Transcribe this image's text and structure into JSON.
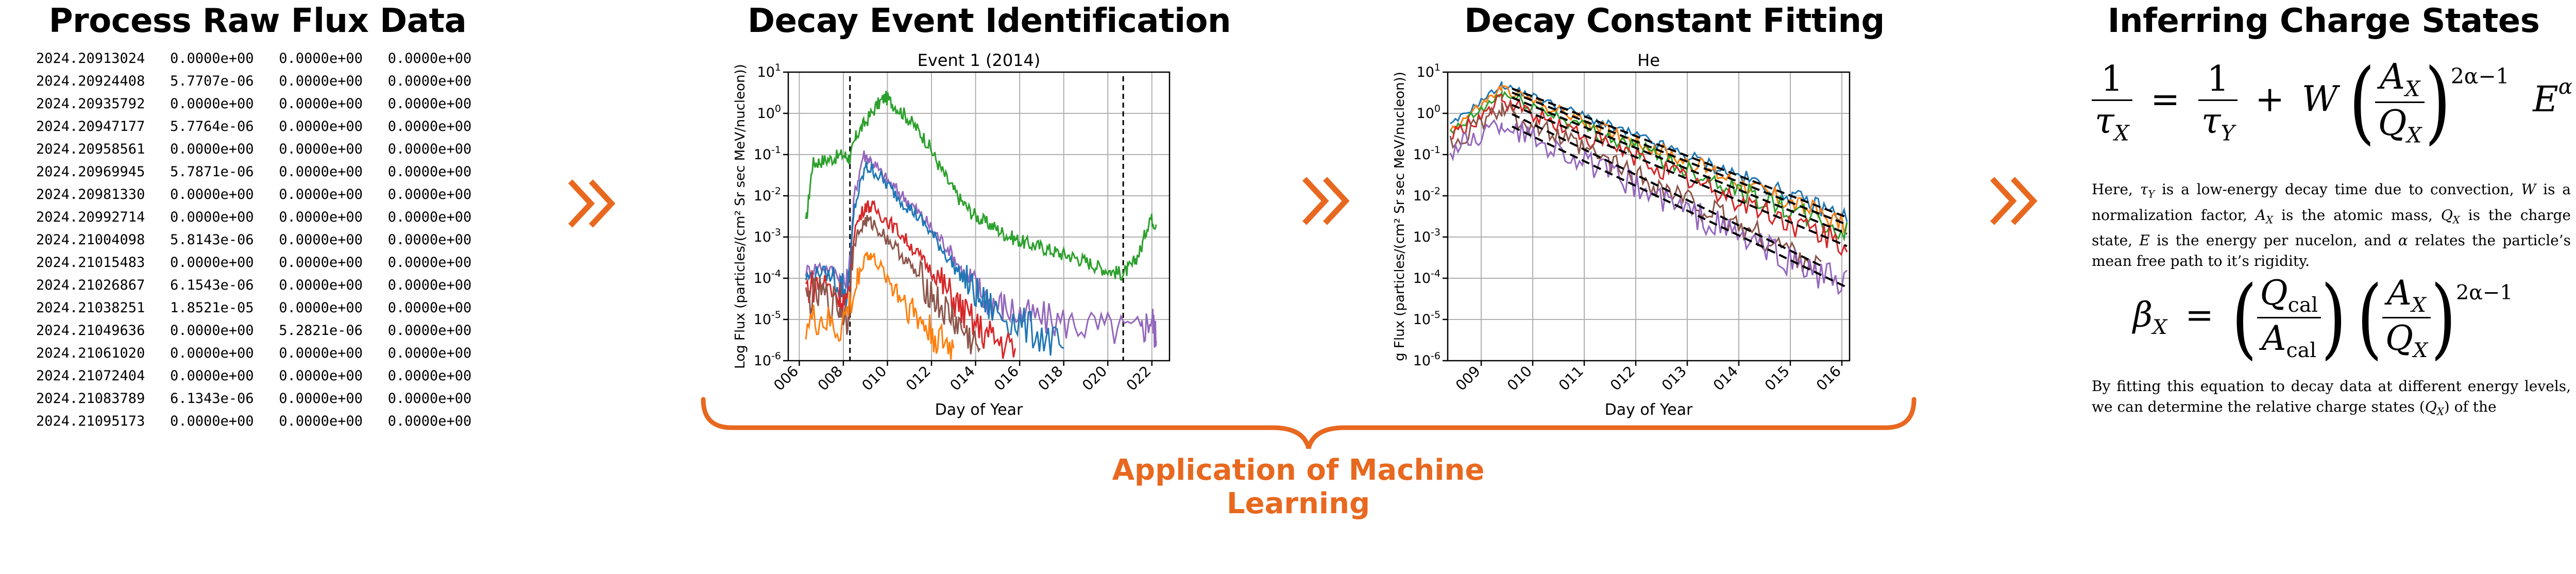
{
  "stages": [
    {
      "title": "Process Raw Flux Data"
    },
    {
      "title": "Decay Event Identification"
    },
    {
      "title": "Decay Constant Fitting"
    },
    {
      "title": "Inferring Charge States"
    }
  ],
  "raw_table": {
    "rows": [
      [
        "2024.20913024",
        "0.0000e+00",
        "0.0000e+00",
        "0.0000e+00"
      ],
      [
        "2024.20924408",
        "5.7707e-06",
        "0.0000e+00",
        "0.0000e+00"
      ],
      [
        "2024.20935792",
        "0.0000e+00",
        "0.0000e+00",
        "0.0000e+00"
      ],
      [
        "2024.20947177",
        "5.7764e-06",
        "0.0000e+00",
        "0.0000e+00"
      ],
      [
        "2024.20958561",
        "0.0000e+00",
        "0.0000e+00",
        "0.0000e+00"
      ],
      [
        "2024.20969945",
        "5.7871e-06",
        "0.0000e+00",
        "0.0000e+00"
      ],
      [
        "2024.20981330",
        "0.0000e+00",
        "0.0000e+00",
        "0.0000e+00"
      ],
      [
        "2024.20992714",
        "0.0000e+00",
        "0.0000e+00",
        "0.0000e+00"
      ],
      [
        "2024.21004098",
        "5.8143e-06",
        "0.0000e+00",
        "0.0000e+00"
      ],
      [
        "2024.21015483",
        "0.0000e+00",
        "0.0000e+00",
        "0.0000e+00"
      ],
      [
        "2024.21026867",
        "6.1543e-06",
        "0.0000e+00",
        "0.0000e+00"
      ],
      [
        "2024.21038251",
        "1.8521e-05",
        "0.0000e+00",
        "0.0000e+00"
      ],
      [
        "2024.21049636",
        "0.0000e+00",
        "5.2821e-06",
        "0.0000e+00"
      ],
      [
        "2024.21061020",
        "0.0000e+00",
        "0.0000e+00",
        "0.0000e+00"
      ],
      [
        "2024.21072404",
        "0.0000e+00",
        "0.0000e+00",
        "0.0000e+00"
      ],
      [
        "2024.21083789",
        "6.1343e-06",
        "0.0000e+00",
        "0.0000e+00"
      ],
      [
        "2024.21095173",
        "0.0000e+00",
        "0.0000e+00",
        "0.0000e+00"
      ]
    ]
  },
  "chart_data": [
    {
      "type": "line",
      "title": "Event 1 (2014)",
      "xlabel": "Day of Year",
      "ylabel": "Log Flux (particles/(cm² Sr sec MeV/nucleon))",
      "y_scale": "log",
      "xlim": [
        5.5,
        22.8
      ],
      "ylim": [
        1e-06,
        10
      ],
      "x_ticks": [
        "006",
        "008",
        "010",
        "012",
        "014",
        "016",
        "018",
        "020",
        "022"
      ],
      "x_tick_values": [
        6,
        8,
        10,
        12,
        14,
        16,
        18,
        20,
        22
      ],
      "y_tick_exponents": [
        -6,
        -5,
        -4,
        -3,
        -2,
        -1,
        0,
        1
      ],
      "grid": true,
      "vlines": [
        8.3,
        20.7
      ],
      "series": [
        {
          "color": "#2ca02c",
          "points": [
            [
              6.3,
              0.002
            ],
            [
              6.6,
              0.06
            ],
            [
              7.0,
              0.07
            ],
            [
              7.5,
              0.08
            ],
            [
              8.0,
              0.1
            ],
            [
              8.3,
              0.08
            ],
            [
              8.6,
              0.3
            ],
            [
              9.0,
              0.6
            ],
            [
              9.5,
              1.5
            ],
            [
              9.9,
              2.5
            ],
            [
              10.3,
              1.6
            ],
            [
              10.8,
              0.9
            ],
            [
              11.3,
              0.45
            ],
            [
              11.8,
              0.2
            ],
            [
              12.3,
              0.06
            ],
            [
              12.8,
              0.02
            ],
            [
              13.3,
              0.008
            ],
            [
              13.8,
              0.004
            ],
            [
              14.3,
              0.0025
            ],
            [
              14.8,
              0.0018
            ],
            [
              15.3,
              0.0012
            ],
            [
              15.8,
              0.0009
            ],
            [
              16.3,
              0.0007
            ],
            [
              16.8,
              0.0006
            ],
            [
              17.3,
              0.0005
            ],
            [
              17.8,
              0.0004
            ],
            [
              18.3,
              0.00035
            ],
            [
              18.8,
              0.00028
            ],
            [
              19.3,
              0.00022
            ],
            [
              19.8,
              0.00017
            ],
            [
              20.3,
              0.00014
            ],
            [
              20.7,
              0.00013
            ],
            [
              21.1,
              0.0002
            ],
            [
              21.5,
              0.0005
            ],
            [
              21.9,
              0.003
            ],
            [
              22.2,
              0.002
            ]
          ]
        },
        {
          "color": "#9467bd",
          "points": [
            [
              6.3,
              0.00015
            ],
            [
              7.0,
              0.0002
            ],
            [
              7.8,
              0.00012
            ],
            [
              8.2,
              6e-05
            ],
            [
              8.5,
              0.01
            ],
            [
              8.9,
              0.1
            ],
            [
              9.3,
              0.07
            ],
            [
              9.8,
              0.03
            ],
            [
              10.4,
              0.014
            ],
            [
              11.0,
              0.007
            ],
            [
              11.6,
              0.003
            ],
            [
              12.2,
              0.0012
            ],
            [
              12.8,
              0.0005
            ],
            [
              13.4,
              0.00015
            ],
            [
              14.0,
              6e-05
            ],
            [
              14.6,
              3e-05
            ],
            [
              15.3,
              2e-05
            ],
            [
              16.2,
              1.2e-05
            ],
            [
              17.2,
              1e-05
            ],
            [
              18.5,
              8e-06
            ],
            [
              20.0,
              6e-06
            ],
            [
              21.5,
              5e-06
            ],
            [
              22.0,
              1.2e-05
            ],
            [
              22.2,
              3e-06
            ]
          ]
        },
        {
          "color": "#1f77b4",
          "points": [
            [
              6.3,
              0.0001
            ],
            [
              7.0,
              0.00015
            ],
            [
              7.8,
              8e-05
            ],
            [
              8.2,
              4e-05
            ],
            [
              8.5,
              0.005
            ],
            [
              9.0,
              0.05
            ],
            [
              9.4,
              0.04
            ],
            [
              10.0,
              0.018
            ],
            [
              10.6,
              0.008
            ],
            [
              11.2,
              0.004
            ],
            [
              11.8,
              0.0017
            ],
            [
              12.4,
              0.0006
            ],
            [
              13.0,
              0.0002
            ],
            [
              13.6,
              8e-05
            ],
            [
              14.2,
              3e-05
            ],
            [
              15.0,
              1.5e-05
            ],
            [
              16.0,
              8e-06
            ],
            [
              17.0,
              4e-06
            ],
            [
              18.0,
              2e-06
            ]
          ]
        },
        {
          "color": "#d62728",
          "points": [
            [
              6.3,
              6e-05
            ],
            [
              7.0,
              8e-05
            ],
            [
              7.8,
              4e-05
            ],
            [
              8.2,
              2e-05
            ],
            [
              8.5,
              0.0015
            ],
            [
              9.0,
              0.006
            ],
            [
              9.4,
              0.005
            ],
            [
              10.0,
              0.0025
            ],
            [
              10.6,
              0.0012
            ],
            [
              11.2,
              0.0005
            ],
            [
              11.8,
              0.0002
            ],
            [
              12.4,
              8e-05
            ],
            [
              13.0,
              3e-05
            ],
            [
              13.6,
              1.2e-05
            ],
            [
              14.3,
              5e-06
            ],
            [
              15.0,
              3e-06
            ],
            [
              15.8,
              2e-06
            ]
          ]
        },
        {
          "color": "#8c564b",
          "points": [
            [
              6.3,
              3e-05
            ],
            [
              7.0,
              4e-05
            ],
            [
              7.8,
              2e-05
            ],
            [
              8.2,
              1e-05
            ],
            [
              8.5,
              0.0008
            ],
            [
              9.0,
              0.0025
            ],
            [
              9.4,
              0.002
            ],
            [
              10.0,
              0.0009
            ],
            [
              10.6,
              0.0004
            ],
            [
              11.2,
              0.00015
            ],
            [
              11.8,
              6e-05
            ],
            [
              12.4,
              2e-05
            ],
            [
              13.0,
              1e-05
            ],
            [
              13.6,
              4e-06
            ],
            [
              14.2,
              2e-06
            ]
          ]
        },
        {
          "color": "#ff7f0e",
          "points": [
            [
              6.3,
              8e-06
            ],
            [
              7.0,
              1e-05
            ],
            [
              7.8,
              5e-06
            ],
            [
              8.5,
              4e-05
            ],
            [
              9.0,
              0.0004
            ],
            [
              9.4,
              0.0003
            ],
            [
              10.0,
              0.0001
            ],
            [
              10.6,
              4e-05
            ],
            [
              11.2,
              1.5e-05
            ],
            [
              11.8,
              6e-06
            ],
            [
              12.4,
              3e-06
            ],
            [
              13.0,
              2e-06
            ]
          ]
        }
      ]
    },
    {
      "type": "line",
      "title": "He",
      "xlabel": "Day of Year",
      "ylabel": "g Flux (particles/(cm² Sr sec MeV/nucleon))",
      "y_scale": "log",
      "xlim": [
        8.35,
        16.15
      ],
      "ylim": [
        1e-06,
        10
      ],
      "x_ticks": [
        "009",
        "010",
        "011",
        "012",
        "013",
        "014",
        "015",
        "016"
      ],
      "x_tick_values": [
        9,
        10,
        11,
        12,
        13,
        14,
        15,
        16
      ],
      "y_tick_exponents": [
        -6,
        -5,
        -4,
        -3,
        -2,
        -1,
        0,
        1
      ],
      "grid": true,
      "series": [
        {
          "color": "#1f77b4",
          "start": [
            8.4,
            0.5
          ],
          "peak": [
            9.4,
            5
          ],
          "end": [
            16.1,
            0.003
          ]
        },
        {
          "color": "#ff7f0e",
          "start": [
            8.4,
            0.4
          ],
          "peak": [
            9.4,
            4
          ],
          "end": [
            16.1,
            0.002
          ]
        },
        {
          "color": "#2ca02c",
          "start": [
            8.4,
            0.3
          ],
          "peak": [
            9.4,
            3
          ],
          "end": [
            16.1,
            0.0012
          ]
        },
        {
          "color": "#d62728",
          "start": [
            8.4,
            0.25
          ],
          "peak": [
            9.4,
            2
          ],
          "end": [
            16.1,
            0.0006
          ]
        },
        {
          "color": "#8c564b",
          "start": [
            8.4,
            0.18
          ],
          "peak": [
            9.4,
            1.2
          ],
          "end": [
            15.6,
            0.0002
          ]
        },
        {
          "color": "#9467bd",
          "start": [
            8.4,
            0.12
          ],
          "peak": [
            9.4,
            0.6
          ],
          "end": [
            16.1,
            6e-05
          ]
        }
      ],
      "fits": {
        "color": "#000000",
        "style": "dashed"
      }
    }
  ],
  "equations": {
    "eq1": {
      "lhs_num": "1",
      "lhs_den": "τ",
      "lhs_den_sub": "X",
      "mid_num": "1",
      "mid_den": "τ",
      "mid_den_sub": "Y",
      "w": "W",
      "a_num": "A",
      "a_num_sub": "X",
      "q_den": "Q",
      "q_den_sub": "X",
      "exp": "2α−1",
      "e": "E",
      "e_exp": "α"
    },
    "paragraph1": "Here, τ_Y is a low-energy decay time due to convection, W is a normalization factor, A_X is the atomic mass, Q_X is the charge state, E is the energy per nucelon, and α relates the particle’s mean free path to it’s rigidity.",
    "eq2": {
      "lhs": "β",
      "lhs_sub": "X",
      "q_num": "Q",
      "q_num_sub": "cal",
      "a_den": "A",
      "a_den_sub": "cal",
      "a_num": "A",
      "a_num_sub": "X",
      "q_den": "Q",
      "q_den_sub": "X",
      "exp": "2α−1"
    },
    "paragraph2": "By fitting this equation to decay data at different energy levels, we can determine the relative charge states (Q_X) of the"
  },
  "ml_label": "Application of Machine Learning",
  "colors": {
    "accent": "#e8681f"
  },
  "icons": {
    "chevron": "double-chevron-right-icon"
  }
}
